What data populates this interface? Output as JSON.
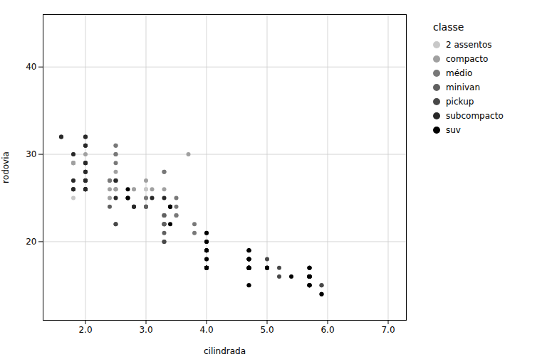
{
  "chart_data": {
    "type": "scatter",
    "xlabel": "cilindrada",
    "ylabel": "rodovia",
    "legend_title": "classe",
    "legend": "right",
    "grid": true,
    "xlim": [
      1.3,
      7.3
    ],
    "ylim": [
      11,
      46
    ],
    "xticks": [
      2,
      3,
      4,
      5,
      6,
      7
    ],
    "yticks": [
      20,
      30,
      40
    ],
    "series": [
      {
        "name": "2 assentos",
        "color": "#c8c8c8",
        "values": [
          [
            1.8,
            26
          ],
          [
            1.8,
            25
          ],
          [
            2.0,
            26
          ],
          [
            2.0,
            26
          ],
          [
            2.8,
            26
          ],
          [
            3.0,
            26
          ],
          [
            3.0,
            26
          ],
          [
            3.0,
            25
          ],
          [
            3.0,
            24
          ]
        ]
      },
      {
        "name": "compacto",
        "color": "#a0a0a0",
        "values": [
          [
            1.8,
            29
          ],
          [
            1.8,
            29
          ],
          [
            2.0,
            31
          ],
          [
            2.0,
            30
          ],
          [
            2.0,
            28
          ],
          [
            2.0,
            27
          ],
          [
            2.8,
            24
          ],
          [
            2.8,
            24
          ],
          [
            3.1,
            26
          ],
          [
            1.8,
            26
          ],
          [
            1.8,
            26
          ],
          [
            2.0,
            27
          ],
          [
            2.4,
            26
          ],
          [
            2.4,
            25
          ],
          [
            2.5,
            28
          ],
          [
            2.5,
            26
          ],
          [
            1.8,
            29
          ],
          [
            1.8,
            29
          ],
          [
            2.0,
            28
          ],
          [
            2.0,
            29
          ],
          [
            2.5,
            26
          ],
          [
            2.5,
            26
          ],
          [
            3.3,
            26
          ],
          [
            1.8,
            27
          ],
          [
            1.8,
            30
          ],
          [
            2.0,
            31
          ],
          [
            2.0,
            26
          ],
          [
            2.8,
            26
          ],
          [
            3.0,
            27
          ],
          [
            3.7,
            30
          ]
        ]
      },
      {
        "name": "médio",
        "color": "#787878",
        "values": [
          [
            2.4,
            27
          ],
          [
            2.4,
            27
          ],
          [
            2.5,
            27
          ],
          [
            2.5,
            27
          ],
          [
            3.0,
            24
          ],
          [
            3.0,
            24
          ],
          [
            3.0,
            24
          ],
          [
            3.0,
            25
          ],
          [
            3.5,
            23
          ],
          [
            3.5,
            25
          ],
          [
            3.5,
            23
          ],
          [
            3.5,
            24
          ],
          [
            3.8,
            22
          ],
          [
            3.8,
            21
          ],
          [
            4.0,
            21
          ],
          [
            4.0,
            18
          ],
          [
            2.5,
            29
          ],
          [
            2.5,
            27
          ],
          [
            2.5,
            31
          ],
          [
            2.5,
            31
          ],
          [
            2.5,
            30
          ],
          [
            2.5,
            30
          ],
          [
            3.3,
            28
          ],
          [
            3.3,
            28
          ]
        ]
      },
      {
        "name": "minivan",
        "color": "#606060",
        "values": [
          [
            2.4,
            24
          ],
          [
            3.0,
            24
          ],
          [
            3.3,
            22
          ],
          [
            3.3,
            22
          ],
          [
            3.3,
            22
          ],
          [
            3.3,
            22
          ],
          [
            3.3,
            23
          ],
          [
            3.3,
            21
          ],
          [
            3.3,
            23
          ],
          [
            3.3,
            23
          ],
          [
            3.3,
            22
          ]
        ]
      },
      {
        "name": "pickup",
        "color": "#484848",
        "values": [
          [
            2.5,
            22
          ],
          [
            2.5,
            22
          ],
          [
            3.3,
            20
          ],
          [
            3.3,
            20
          ],
          [
            4.0,
            19
          ],
          [
            4.0,
            19
          ],
          [
            4.7,
            18
          ],
          [
            4.7,
            18
          ],
          [
            4.7,
            17
          ],
          [
            4.7,
            17
          ],
          [
            5.0,
            18
          ],
          [
            5.0,
            17
          ],
          [
            5.2,
            16
          ],
          [
            5.7,
            16
          ],
          [
            5.9,
            15
          ],
          [
            4.0,
            20
          ],
          [
            4.0,
            19
          ],
          [
            4.0,
            17
          ],
          [
            4.0,
            20
          ],
          [
            4.7,
            17
          ],
          [
            4.7,
            15
          ],
          [
            4.7,
            17
          ],
          [
            5.2,
            17
          ],
          [
            5.7,
            16
          ],
          [
            5.9,
            15
          ]
        ]
      },
      {
        "name": "subcompacto",
        "color": "#282828",
        "values": [
          [
            1.8,
            26
          ],
          [
            1.8,
            26
          ],
          [
            2.0,
            26
          ],
          [
            2.0,
            26
          ],
          [
            2.8,
            24
          ],
          [
            2.8,
            24
          ],
          [
            3.1,
            25
          ],
          [
            1.8,
            27
          ],
          [
            1.8,
            30
          ],
          [
            2.0,
            29
          ],
          [
            2.0,
            26
          ],
          [
            2.0,
            26
          ],
          [
            2.0,
            27
          ],
          [
            2.0,
            27
          ],
          [
            2.0,
            27
          ],
          [
            2.5,
            25
          ],
          [
            2.5,
            27
          ],
          [
            3.3,
            25
          ],
          [
            1.6,
            32
          ],
          [
            1.6,
            32
          ],
          [
            2.0,
            31
          ],
          [
            2.0,
            32
          ],
          [
            2.0,
            29
          ],
          [
            2.0,
            28
          ],
          [
            2.0,
            31
          ],
          [
            2.0,
            32
          ],
          [
            2.0,
            29
          ],
          [
            2.0,
            28
          ]
        ]
      },
      {
        "name": "suv",
        "color": "#000000",
        "values": [
          [
            2.7,
            26
          ],
          [
            2.7,
            25
          ],
          [
            2.7,
            25
          ],
          [
            3.4,
            24
          ],
          [
            3.4,
            24
          ],
          [
            3.4,
            24
          ],
          [
            3.4,
            22
          ],
          [
            4.0,
            21
          ],
          [
            4.7,
            17
          ],
          [
            4.7,
            17
          ],
          [
            4.7,
            17
          ],
          [
            5.7,
            16
          ],
          [
            5.7,
            15
          ],
          [
            5.7,
            15
          ],
          [
            5.7,
            16
          ],
          [
            4.0,
            17
          ],
          [
            4.7,
            18
          ],
          [
            4.7,
            17
          ],
          [
            4.7,
            15
          ],
          [
            5.7,
            17
          ],
          [
            5.7,
            15
          ],
          [
            5.7,
            16
          ],
          [
            5.7,
            16
          ],
          [
            4.7,
            17
          ],
          [
            4.7,
            17
          ],
          [
            5.9,
            14
          ],
          [
            4.7,
            17
          ],
          [
            4.7,
            19
          ],
          [
            4.0,
            17
          ],
          [
            4.0,
            17
          ],
          [
            4.0,
            17
          ],
          [
            4.0,
            18
          ],
          [
            4.0,
            17
          ],
          [
            4.0,
            19
          ],
          [
            4.0,
            19
          ],
          [
            4.7,
            18
          ],
          [
            4.7,
            19
          ],
          [
            4.7,
            19
          ],
          [
            4.0,
            17
          ],
          [
            4.0,
            17
          ],
          [
            4.7,
            18
          ],
          [
            4.0,
            17
          ],
          [
            4.0,
            17
          ],
          [
            4.0,
            20
          ],
          [
            5.4,
            16
          ],
          [
            4.7,
            17
          ],
          [
            4.7,
            17
          ],
          [
            5.0,
            17
          ],
          [
            5.0,
            17
          ],
          [
            5.0,
            17
          ],
          [
            5.0,
            17
          ],
          [
            5.7,
            17
          ],
          [
            5.7,
            16
          ],
          [
            5.7,
            15
          ],
          [
            5.7,
            17
          ],
          [
            5.7,
            15
          ],
          [
            5.7,
            16
          ],
          [
            5.7,
            16
          ],
          [
            4.7,
            17
          ],
          [
            4.7,
            17
          ],
          [
            5.9,
            14
          ]
        ]
      }
    ]
  }
}
